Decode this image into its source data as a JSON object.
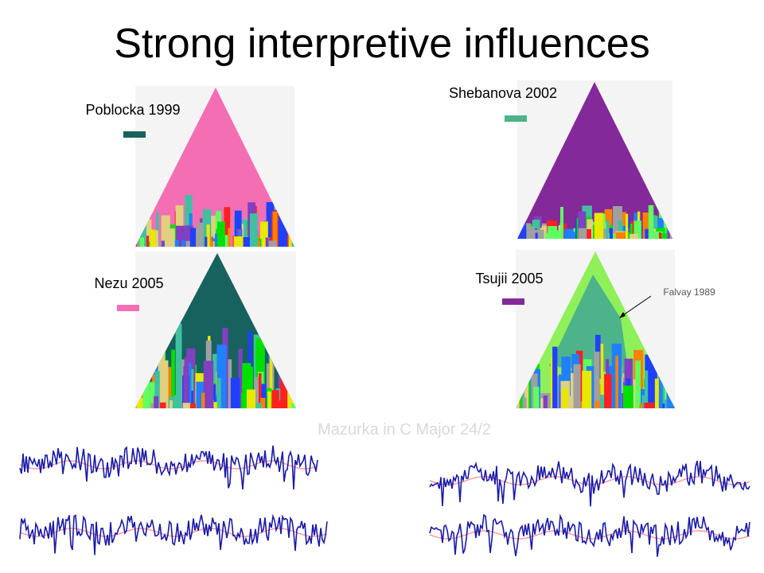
{
  "title": "Strong interpretive influences",
  "panels": [
    {
      "label": "Poblocka 1999"
    },
    {
      "label": "Shebanova 2002"
    },
    {
      "label": "Nezu 2005"
    },
    {
      "label": "Tsujii 2005",
      "annotation": "Falvay 1989"
    }
  ],
  "caption": "Mazurka in C Major 24/2"
}
